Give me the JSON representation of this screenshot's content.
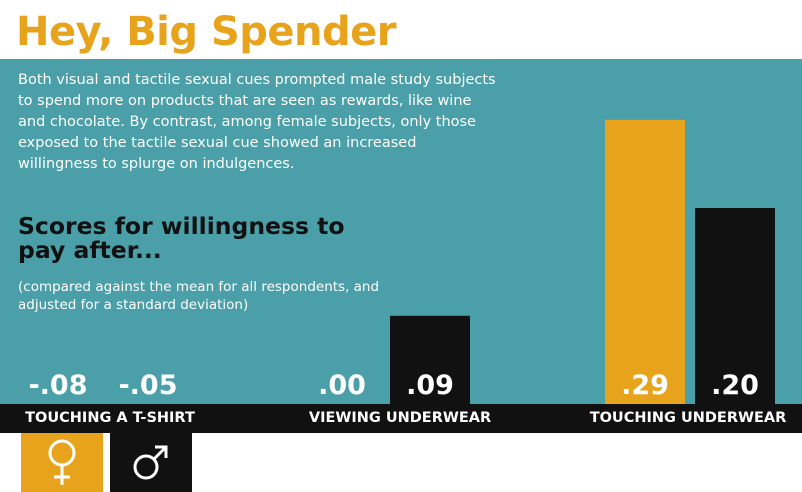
{
  "title": "Hey, Big Spender",
  "intro": "Both visual and tactile sexual cues prompted male study subjects to spend more on products that are seen as rewards, like wine and chocolate. By contrast, among female subjects, only those exposed to the tactile sexual cue showed an increased willingness to splurge on indulgences.",
  "subhead": "Scores for willingness to pay after...",
  "note": "(compared against the mean for all respondents, and adjusted for a standard deviation)",
  "colors": {
    "female": "#e8a31c",
    "male": "#111111",
    "panel": "#4a9fa8",
    "title": "#e8a31c"
  },
  "legend": [
    {
      "symbol": "female-icon"
    },
    {
      "symbol": "male-icon"
    }
  ],
  "chart_data": {
    "type": "bar",
    "categories": [
      "TOUCHING A T-SHIRT",
      "VIEWING UNDERWEAR",
      "TOUCHING UNDERWEAR"
    ],
    "series": [
      {
        "values": [
          -0.08,
          0.0,
          0.29
        ],
        "labels": [
          "-.08",
          ".00",
          ".29"
        ]
      },
      {
        "values": [
          -0.05,
          0.09,
          0.2
        ],
        "labels": [
          "-.05",
          ".09",
          ".20"
        ]
      }
    ],
    "xlabel": "",
    "ylabel": "",
    "grid": false
  }
}
